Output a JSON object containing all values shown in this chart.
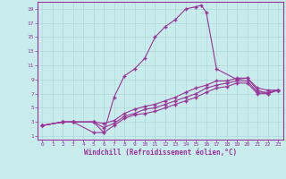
{
  "xlabel": "Windchill (Refroidissement éolien,°C)",
  "background_color": "#c8ecec",
  "grid_color": "#b0d8d8",
  "line_color": "#993399",
  "xlim": [
    -0.5,
    23.5
  ],
  "ylim": [
    0.5,
    20
  ],
  "xticks": [
    0,
    1,
    2,
    3,
    4,
    5,
    6,
    7,
    8,
    9,
    10,
    11,
    12,
    13,
    14,
    15,
    16,
    17,
    18,
    19,
    20,
    21,
    22,
    23
  ],
  "yticks": [
    1,
    3,
    5,
    7,
    9,
    11,
    13,
    15,
    17,
    19
  ],
  "line1_x": [
    0,
    2,
    3,
    5,
    6,
    7,
    8,
    9,
    10,
    11,
    12,
    13,
    14,
    15,
    15.5,
    16,
    17,
    19,
    20,
    21,
    22,
    23
  ],
  "line1_y": [
    2.5,
    3,
    3,
    1.5,
    1.5,
    6.5,
    9.5,
    10.5,
    12,
    15,
    16.5,
    17.5,
    19,
    19.3,
    19.5,
    18.5,
    10.5,
    9,
    9.2,
    7.5,
    7,
    7.5
  ],
  "line2_x": [
    0,
    2,
    3,
    5,
    6,
    7,
    8,
    9,
    10,
    11,
    12,
    13,
    14,
    15,
    16,
    17,
    18,
    19,
    20,
    21,
    22,
    23
  ],
  "line2_y": [
    2.5,
    3,
    3,
    3,
    2.8,
    3.2,
    4.2,
    4.8,
    5.2,
    5.5,
    6,
    6.5,
    7.2,
    7.8,
    8.2,
    8.8,
    8.8,
    9.2,
    9.2,
    7.8,
    7.5,
    7.5
  ],
  "line3_x": [
    0,
    2,
    3,
    5,
    6,
    7,
    8,
    9,
    10,
    11,
    12,
    13,
    14,
    15,
    16,
    17,
    18,
    19,
    20,
    21,
    22,
    23
  ],
  "line3_y": [
    2.5,
    3,
    3,
    3,
    2.2,
    2.8,
    3.8,
    4.2,
    4.8,
    5,
    5.5,
    6,
    6.5,
    7,
    7.8,
    8.2,
    8.5,
    8.8,
    8.8,
    7.2,
    7.2,
    7.5
  ],
  "line4_x": [
    0,
    2,
    3,
    5,
    6,
    7,
    8,
    9,
    10,
    11,
    12,
    13,
    14,
    15,
    16,
    17,
    18,
    19,
    20,
    21,
    22,
    23
  ],
  "line4_y": [
    2.5,
    3,
    3,
    3,
    1.5,
    2.5,
    3.5,
    4,
    4.2,
    4.5,
    5,
    5.5,
    6,
    6.5,
    7.2,
    7.8,
    8,
    8.5,
    8.5,
    7,
    7,
    7.5
  ]
}
